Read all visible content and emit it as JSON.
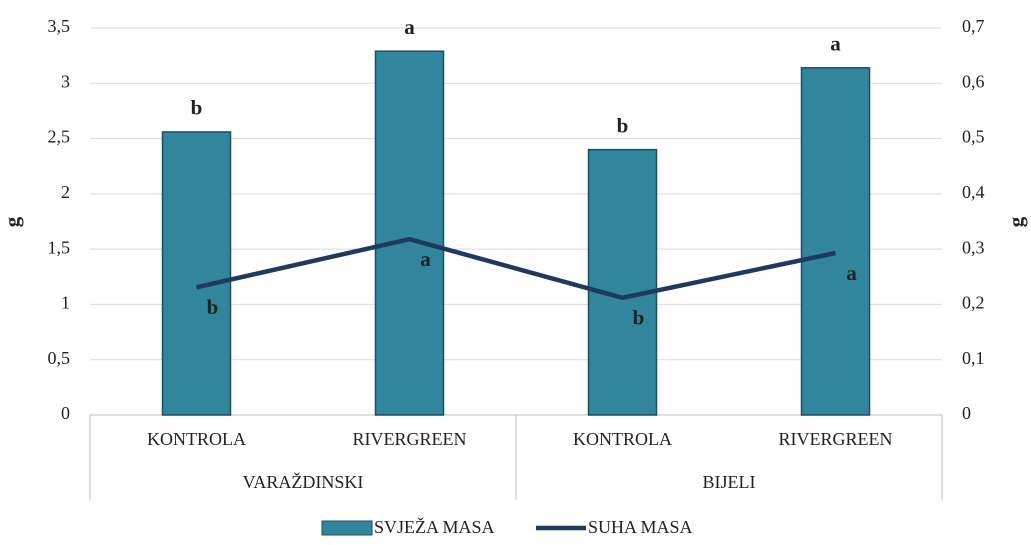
{
  "chart_data": {
    "type": "bar+line",
    "categories": [
      "KONTROLA",
      "RIVERGREEN",
      "KONTROLA",
      "RIVERGREEN"
    ],
    "groups": [
      "VARAŽDINSKI",
      "BIJELI"
    ],
    "ylabel": "g",
    "y2label": "g",
    "series": [
      {
        "name": "SVJEŽA MASA",
        "type": "bar",
        "color": "#31859c",
        "values": [
          2.56,
          3.29,
          2.4,
          3.14
        ],
        "labels": [
          "b",
          "a",
          "b",
          "a"
        ]
      },
      {
        "name": "SUHA MASA",
        "type": "line",
        "axis": "y2",
        "color": "#1f3a5f",
        "values": [
          0.231,
          0.318,
          0.212,
          0.293
        ],
        "labels": [
          "b",
          "a",
          "b",
          "a"
        ]
      }
    ],
    "ylim": [
      0,
      3.5
    ],
    "yticks": [
      0,
      {
        "value": 0.5,
        "label": "0,5"
      },
      1,
      {
        "value": 1.5,
        "label": "1,5"
      },
      2,
      {
        "value": 2.5,
        "label": "2,5"
      },
      3,
      {
        "value": 3.5,
        "label": "3,5"
      }
    ],
    "y2lim": [
      0,
      0.7
    ],
    "y2ticks": [
      0,
      {
        "value": 0.1,
        "label": "0,1"
      },
      {
        "value": 0.2,
        "label": "0,2"
      },
      {
        "value": 0.3,
        "label": "0,3"
      },
      {
        "value": 0.4,
        "label": "0,4"
      },
      {
        "value": 0.5,
        "label": "0,5"
      },
      {
        "value": 0.6,
        "label": "0,6"
      },
      {
        "value": 0.7,
        "label": "0,7"
      }
    ],
    "grid": true
  }
}
